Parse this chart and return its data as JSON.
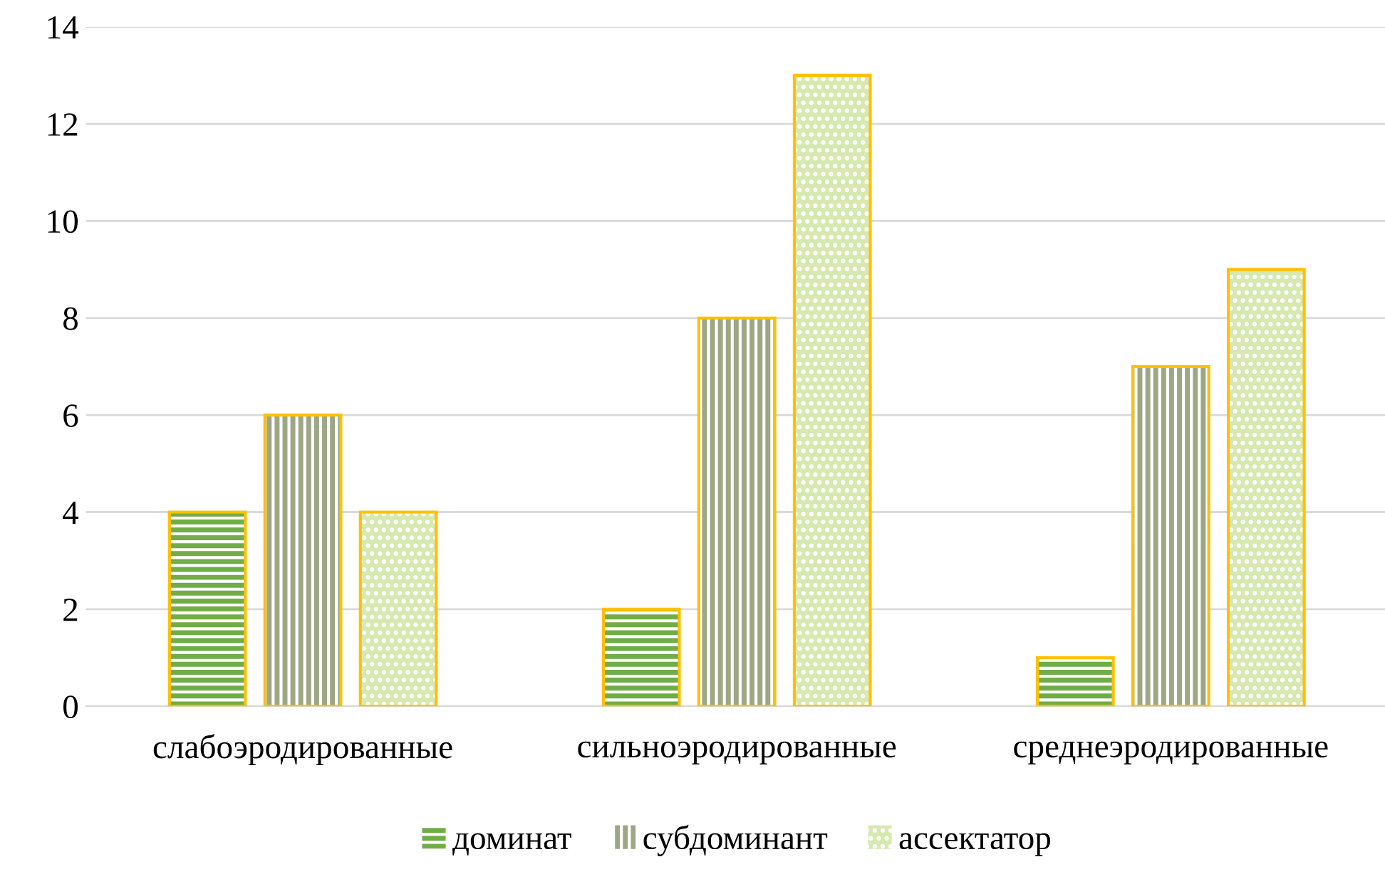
{
  "chart_data": {
    "type": "bar",
    "categories": [
      "слабоэродированные",
      "сильноэродированные",
      "среднеэродированные"
    ],
    "series": [
      {
        "name": "доминат",
        "color": "#70ad47",
        "values": [
          4,
          2,
          1
        ]
      },
      {
        "name": "субдоминант",
        "color": "#9ea785",
        "values": [
          6,
          8,
          7
        ]
      },
      {
        "name": "ассектатор",
        "color": "#d6e9b0",
        "values": [
          4,
          13,
          9
        ]
      }
    ],
    "ylim": [
      0,
      14
    ],
    "yticks": [
      0,
      2,
      4,
      6,
      8,
      10,
      12,
      14
    ],
    "grid": "y",
    "legend": "bottom"
  }
}
